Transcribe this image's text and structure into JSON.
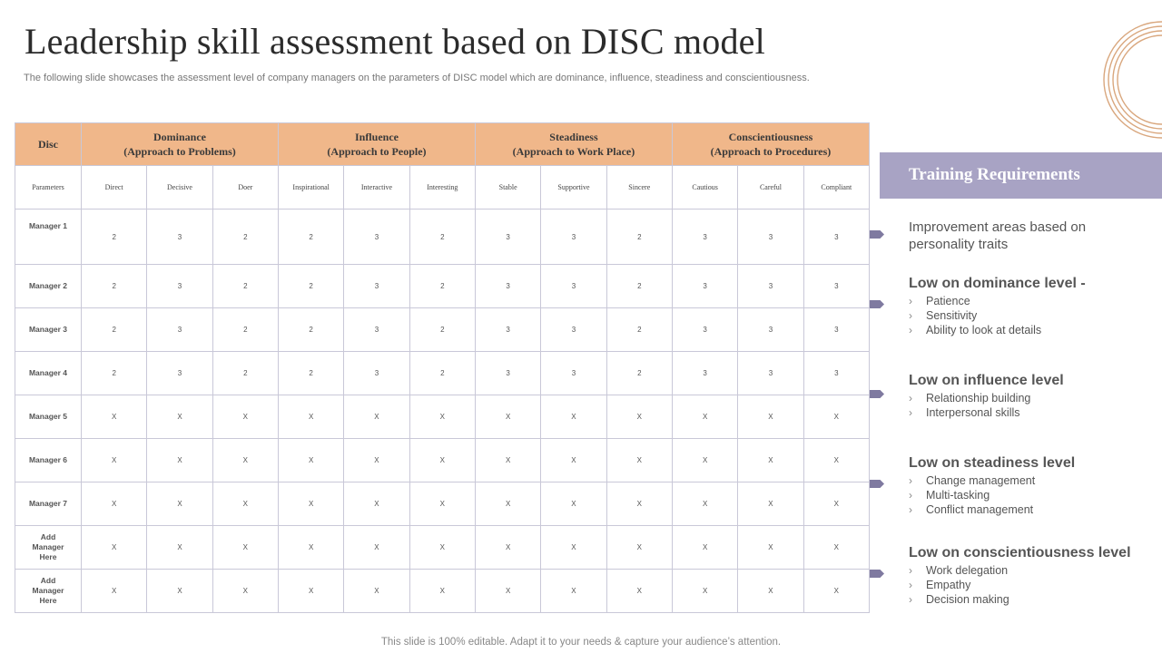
{
  "title": "Leadership skill assessment based on DISC model",
  "subtitle": "The following slide showcases the assessment level of company managers on the parameters of DISC model which are dominance, influence, steadiness and conscientiousness.",
  "table": {
    "corner": "Disc",
    "groups": [
      {
        "name": "Dominance",
        "sub": "(Approach to Problems)"
      },
      {
        "name": "Influence",
        "sub": "(Approach to People)"
      },
      {
        "name": "Steadiness",
        "sub": "(Approach to Work Place)"
      },
      {
        "name": "Conscientiousness",
        "sub": "(Approach to Procedures)"
      }
    ],
    "param_label": "Parameters",
    "params": [
      "Direct",
      "Decisive",
      "Doer",
      "Inspirational",
      "Interactive",
      "Interesting",
      "Stable",
      "Supportive",
      "Sincere",
      "Cautious",
      "Careful",
      "Compliant"
    ],
    "rows": [
      {
        "label": "Manager 1",
        "values": [
          "2",
          "3",
          "2",
          "2",
          "3",
          "2",
          "3",
          "3",
          "2",
          "3",
          "3",
          "3"
        ]
      },
      {
        "label": "Manager 2",
        "values": [
          "2",
          "3",
          "2",
          "2",
          "3",
          "2",
          "3",
          "3",
          "2",
          "3",
          "3",
          "3"
        ]
      },
      {
        "label": "Manager 3",
        "values": [
          "2",
          "3",
          "2",
          "2",
          "3",
          "2",
          "3",
          "3",
          "2",
          "3",
          "3",
          "3"
        ]
      },
      {
        "label": "Manager 4",
        "values": [
          "2",
          "3",
          "2",
          "2",
          "3",
          "2",
          "3",
          "3",
          "2",
          "3",
          "3",
          "3"
        ]
      },
      {
        "label": "Manager 5",
        "values": [
          "X",
          "X",
          "X",
          "X",
          "X",
          "X",
          "X",
          "X",
          "X",
          "X",
          "X",
          "X"
        ]
      },
      {
        "label": "Manager 6",
        "values": [
          "X",
          "X",
          "X",
          "X",
          "X",
          "X",
          "X",
          "X",
          "X",
          "X",
          "X",
          "X"
        ]
      },
      {
        "label": "Manager 7",
        "values": [
          "X",
          "X",
          "X",
          "X",
          "X",
          "X",
          "X",
          "X",
          "X",
          "X",
          "X",
          "X"
        ]
      },
      {
        "label": "Add Manager Here",
        "values": [
          "X",
          "X",
          "X",
          "X",
          "X",
          "X",
          "X",
          "X",
          "X",
          "X",
          "X",
          "X"
        ]
      },
      {
        "label": "Add Manager Here",
        "values": [
          "X",
          "X",
          "X",
          "X",
          "X",
          "X",
          "X",
          "X",
          "X",
          "X",
          "X",
          "X"
        ]
      }
    ]
  },
  "panel": {
    "title": "Training Requirements",
    "intro": "Improvement  areas based on personality traits",
    "sections": [
      {
        "heading": "Low on dominance level -",
        "items": [
          "Patience",
          "Sensitivity",
          "Ability to look at details"
        ]
      },
      {
        "heading": "Low on influence level",
        "items": [
          "Relationship building",
          "Interpersonal  skills"
        ]
      },
      {
        "heading": "Low on steadiness level",
        "items": [
          "Change  management",
          "Multi-tasking",
          "Conflict  management"
        ]
      },
      {
        "heading": "Low on conscientiousness level",
        "items": [
          "Work delegation",
          "Empathy",
          "Decision  making"
        ]
      }
    ]
  },
  "footer": "This slide is 100% editable. Adapt it to your needs & capture your audience’s attention.",
  "colors": {
    "header_fill": "#f0b78a",
    "panel_fill": "#a8a3c4",
    "arrow": "#7f7aa0",
    "rings": "#d9a77e",
    "grid": "#c9c8d8"
  }
}
